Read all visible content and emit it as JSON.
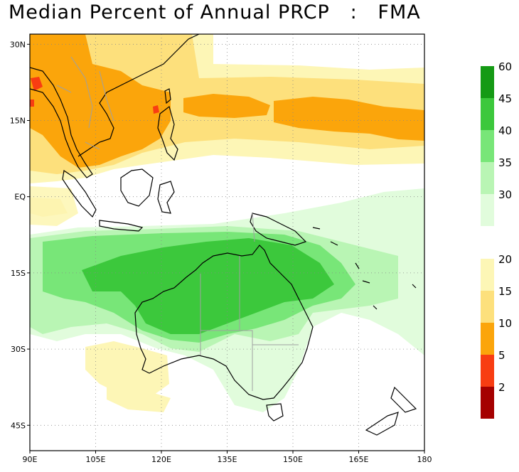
{
  "title": "Median Percent of Annual PRCP   :   FMA",
  "map": {
    "lon_range": [
      90,
      180
    ],
    "lat_range": [
      -50,
      32
    ],
    "lat_ticks": [
      {
        "value": 30,
        "label": "30N"
      },
      {
        "value": 15,
        "label": "15N"
      },
      {
        "value": 0,
        "label": "EQ"
      },
      {
        "value": -15,
        "label": "15S"
      },
      {
        "value": -30,
        "label": "30S"
      },
      {
        "value": -45,
        "label": "45S"
      }
    ],
    "lon_ticks": [
      {
        "value": 90,
        "label": "90E"
      },
      {
        "value": 105,
        "label": "105E"
      },
      {
        "value": 120,
        "label": "120E"
      },
      {
        "value": 135,
        "label": "135E"
      },
      {
        "value": 150,
        "label": "150E"
      },
      {
        "value": 165,
        "label": "165E"
      },
      {
        "value": 180,
        "label": "180"
      }
    ]
  },
  "legend": {
    "upper": [
      {
        "label": "60",
        "color": "#159a15"
      },
      {
        "label": "45",
        "color": "#3cc83c"
      },
      {
        "label": "40",
        "color": "#78e678"
      },
      {
        "label": "35",
        "color": "#b9f5b4"
      },
      {
        "label": "30",
        "color": "#e1fcdc"
      }
    ],
    "lower": [
      {
        "label": "20",
        "color": "#fdf6b6"
      },
      {
        "label": "15",
        "color": "#fde07c"
      },
      {
        "label": "10",
        "color": "#fba50b"
      },
      {
        "label": "5",
        "color": "#f83d12"
      },
      {
        "label": "2",
        "color": "#a50000"
      }
    ]
  },
  "colors": {
    "land_outline": "#000000",
    "border": "#a0a0a0",
    "grid": "#888888"
  }
}
